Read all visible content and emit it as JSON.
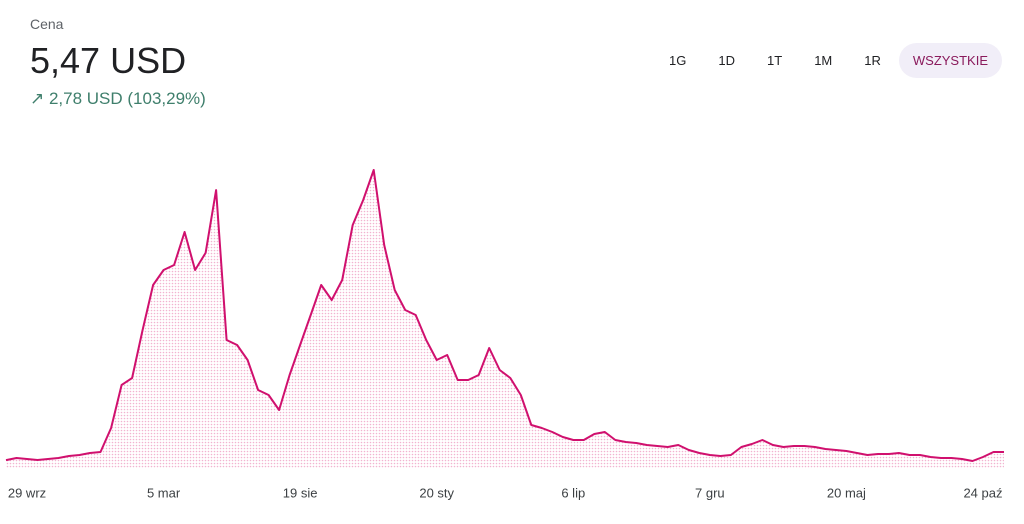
{
  "header": {
    "label": "Cena",
    "price": "5,47 USD",
    "change": "2,78 USD (103,29%)"
  },
  "tabs": [
    "1G",
    "1D",
    "1T",
    "1M",
    "1R",
    "WSZYSTKIE"
  ],
  "active_tab": 5,
  "chart_data": {
    "type": "line",
    "color": "#d0106e",
    "categories": [
      null,
      null,
      "29 wrz",
      null,
      null,
      null,
      null,
      null,
      null,
      null,
      null,
      null,
      null,
      null,
      null,
      "5 mar",
      null,
      null,
      null,
      null,
      null,
      null,
      null,
      null,
      null,
      null,
      null,
      null,
      "19 sie",
      null,
      null,
      null,
      null,
      null,
      null,
      null,
      null,
      null,
      null,
      null,
      null,
      "20 sty",
      null,
      null,
      null,
      null,
      null,
      null,
      null,
      null,
      null,
      null,
      null,
      null,
      "6 lip",
      null,
      null,
      null,
      null,
      null,
      null,
      null,
      null,
      null,
      null,
      null,
      null,
      "7 gru",
      null,
      null,
      null,
      null,
      null,
      null,
      null,
      null,
      null,
      null,
      null,
      null,
      "20 maj",
      null,
      null,
      null,
      null,
      null,
      null,
      null,
      null,
      null,
      null,
      null,
      null,
      "24 paź",
      null,
      null
    ],
    "values": [
      2.69,
      3.42,
      3.08,
      2.74,
      3.08,
      3.42,
      4.1,
      4.45,
      5.13,
      5.47,
      13.68,
      28.39,
      30.78,
      47.2,
      62.59,
      67.72,
      69.43,
      80.71,
      67.72,
      73.58,
      95.06,
      43.78,
      42.07,
      36.94,
      26.68,
      24.97,
      19.84,
      31.81,
      42.07,
      52.33,
      62.59,
      57.46,
      64.3,
      83.11,
      91.66,
      101.92,
      76.27,
      60.88,
      54.04,
      52.33,
      43.78,
      36.94,
      38.65,
      30.1,
      30.1,
      31.81,
      41.04,
      33.52,
      30.78,
      24.97,
      14.71,
      13.68,
      12.31,
      10.6,
      9.58,
      9.58,
      11.63,
      12.31,
      9.58,
      8.89,
      8.55,
      7.87,
      7.52,
      7.18,
      7.87,
      6.16,
      5.13,
      4.45,
      4.1,
      4.45,
      7.18,
      8.21,
      9.58,
      7.87,
      7.18,
      7.52,
      7.52,
      7.18,
      6.5,
      6.16,
      5.81,
      5.13,
      4.45,
      4.79,
      4.79,
      5.13,
      4.45,
      4.45,
      3.76,
      3.42,
      3.42,
      3.08,
      2.39,
      3.76,
      5.47,
      5.47
    ],
    "ylim": [
      0,
      115.6
    ]
  }
}
